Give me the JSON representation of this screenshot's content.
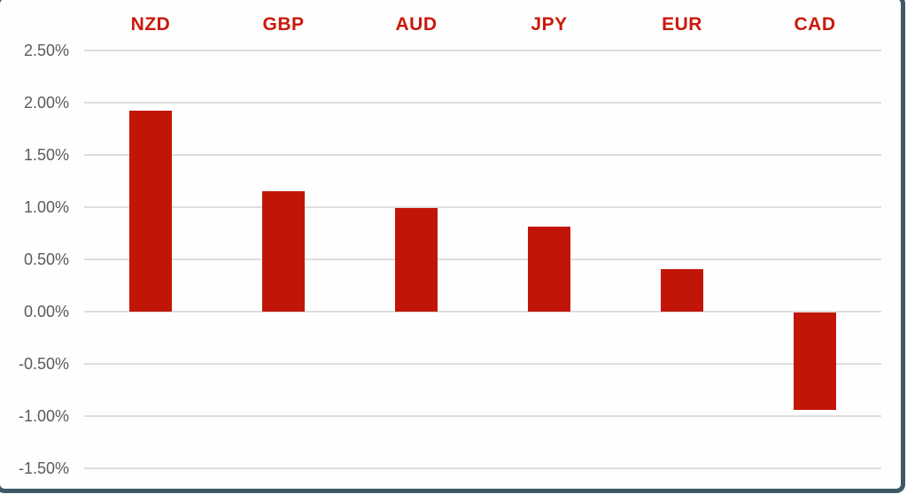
{
  "chart_data": {
    "type": "bar",
    "categories": [
      "NZD",
      "GBP",
      "AUD",
      "JPY",
      "EUR",
      "CAD"
    ],
    "values": [
      1.92,
      1.15,
      0.99,
      0.81,
      0.41,
      -0.93
    ],
    "series_unit": "%",
    "title": "",
    "xlabel": "",
    "ylabel": "",
    "ylim": [
      -1.5,
      2.5
    ],
    "ytick_step": 0.5,
    "ytick_labels": [
      "2.50%",
      "2.00%",
      "1.50%",
      "1.00%",
      "0.50%",
      "0.00%",
      "-0.50%",
      "-1.00%",
      "-1.50%"
    ],
    "grid": "horizontal",
    "legend_position": "none",
    "colors": {
      "bar": "#C11607",
      "category_label": "#C9190C",
      "tick_label": "#5A5A5A",
      "gridline": "#DEDEDE",
      "frame_border": "#3E5866",
      "background": "#FEFEFE"
    }
  }
}
